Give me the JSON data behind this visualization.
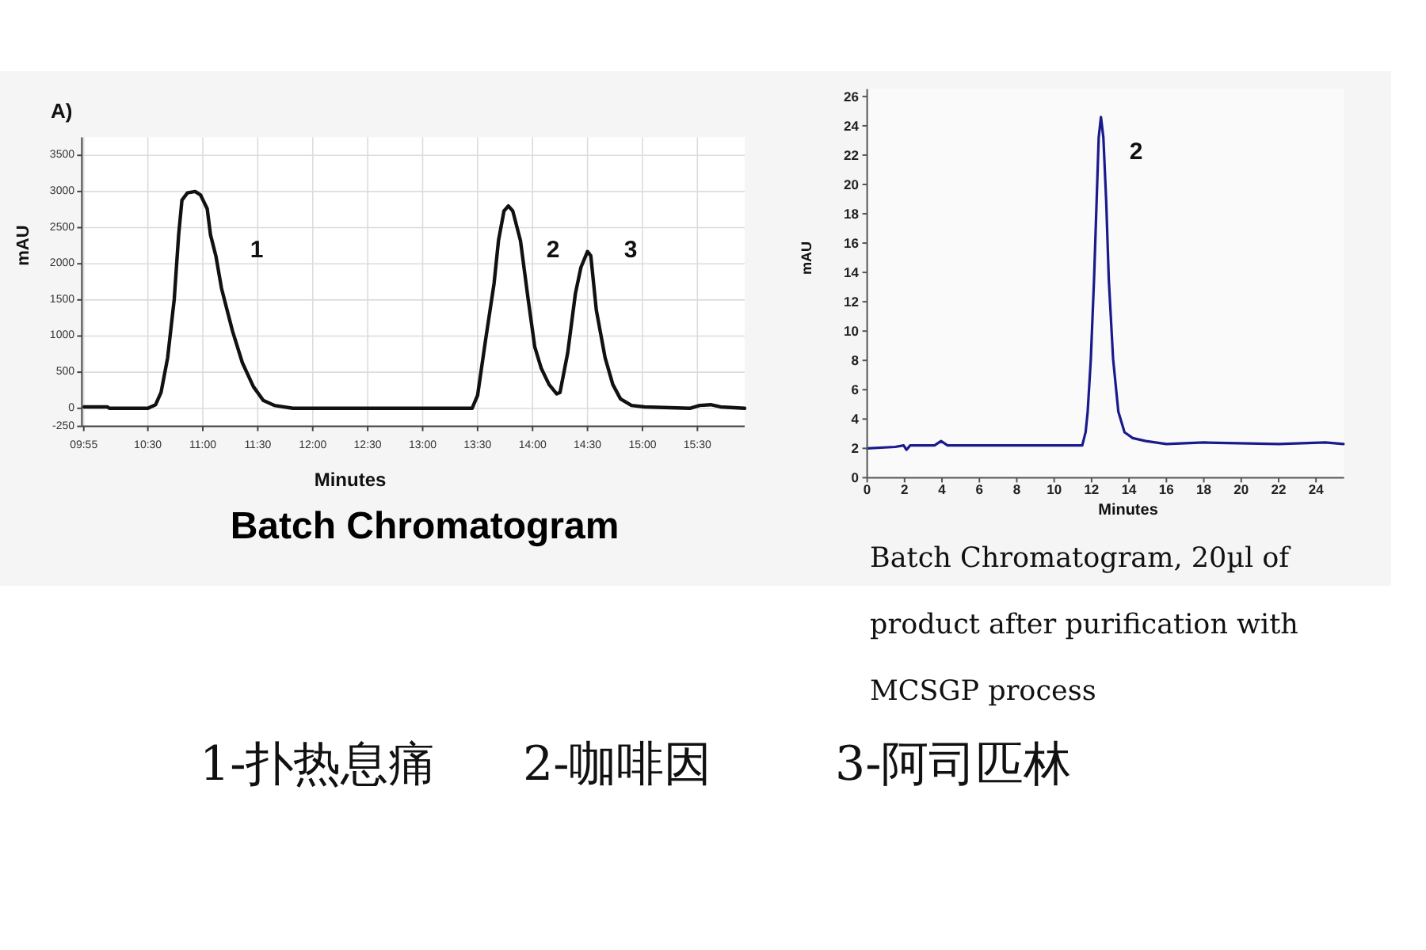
{
  "chart_data": [
    {
      "type": "line",
      "title": "Batch Chromatogram",
      "xlabel": "Minutes",
      "ylabel": "mAU",
      "x": [
        9.92,
        10.13,
        10.15,
        10.5,
        10.57,
        10.62,
        10.68,
        10.74,
        10.78,
        10.81,
        10.86,
        10.93,
        10.98,
        11.04,
        11.07,
        11.12,
        11.17,
        11.27,
        11.36,
        11.46,
        11.55,
        11.65,
        11.82,
        13.45,
        13.5,
        13.57,
        13.65,
        13.69,
        13.74,
        13.78,
        13.82,
        13.89,
        13.96,
        14.02,
        14.08,
        14.15,
        14.22,
        14.25,
        14.32,
        14.39,
        14.44,
        14.5,
        14.53,
        14.58,
        14.66,
        14.73,
        14.8,
        14.9,
        15.02,
        15.43,
        15.52,
        15.62,
        15.71,
        15.93
      ],
      "series": [
        {
          "color": "#111111",
          "values": [
            20,
            20,
            0,
            0,
            50,
            220,
            700,
            1510,
            2400,
            2880,
            2980,
            3000,
            2950,
            2760,
            2400,
            2100,
            1660,
            1070,
            630,
            300,
            110,
            40,
            0,
            0,
            180,
            920,
            1730,
            2320,
            2730,
            2800,
            2730,
            2320,
            1510,
            850,
            550,
            330,
            200,
            220,
            770,
            1590,
            1950,
            2170,
            2110,
            1360,
            700,
            330,
            130,
            40,
            20,
            0,
            40,
            50,
            20,
            0
          ]
        }
      ],
      "xlim": [
        9.9,
        15.93
      ],
      "ylim": [
        -250,
        3750
      ],
      "xticks": [
        {
          "value": 9.9167,
          "label": "09:55"
        },
        {
          "value": 10.5,
          "label": "10:30"
        },
        {
          "value": 11,
          "label": "11:00"
        },
        {
          "value": 11.5,
          "label": "11:30"
        },
        {
          "value": 12,
          "label": "12:00"
        },
        {
          "value": 12.5,
          "label": "12:30"
        },
        {
          "value": 13,
          "label": "13:00"
        },
        {
          "value": 13.5,
          "label": "13:30"
        },
        {
          "value": 14,
          "label": "14:00"
        },
        {
          "value": 14.5,
          "label": "14:30"
        },
        {
          "value": 15,
          "label": "15:00"
        },
        {
          "value": 15.5,
          "label": "15:30"
        }
      ],
      "yticks": [
        -250,
        0,
        500,
        1000,
        1500,
        2000,
        2500,
        3000,
        3500
      ],
      "grid": true,
      "annotations": [
        "A)",
        "1",
        "2",
        "3",
        "1-扑热息痛",
        "2-咖啡因",
        "3-阿司匹林"
      ]
    },
    {
      "type": "line",
      "title": "Batch Chromatogram, 20µl of product after purification with MCSGP process",
      "xlabel": "Minutes",
      "ylabel": "mAU",
      "x": [
        0,
        1.5,
        1.95,
        2.1,
        2.3,
        3.6,
        3.95,
        4.3,
        8,
        11.5,
        11.68,
        11.79,
        11.96,
        12.13,
        12.27,
        12.38,
        12.5,
        12.63,
        12.78,
        12.92,
        13.15,
        13.43,
        13.76,
        14.2,
        14.9,
        16,
        18,
        22,
        24.5,
        25.47
      ],
      "series": [
        {
          "color": "#1a1a8c",
          "values": [
            2.0,
            2.1,
            2.2,
            1.9,
            2.2,
            2.2,
            2.5,
            2.2,
            2.2,
            2.2,
            3.1,
            4.5,
            8.1,
            13.5,
            18.9,
            23.2,
            24.6,
            23.2,
            18.9,
            13.5,
            8.1,
            4.5,
            3.1,
            2.7,
            2.5,
            2.3,
            2.4,
            2.3,
            2.4,
            2.3
          ]
        }
      ],
      "xlim": [
        0,
        25.5
      ],
      "ylim": [
        0,
        26.5
      ],
      "xticks": [
        0,
        2,
        4,
        6,
        8,
        10,
        12,
        14,
        16,
        18,
        20,
        22,
        24
      ],
      "yticks": [
        0,
        2,
        4,
        6,
        8,
        10,
        12,
        14,
        16,
        18,
        20,
        22,
        24,
        26
      ],
      "annotations": [
        "2"
      ]
    }
  ]
}
